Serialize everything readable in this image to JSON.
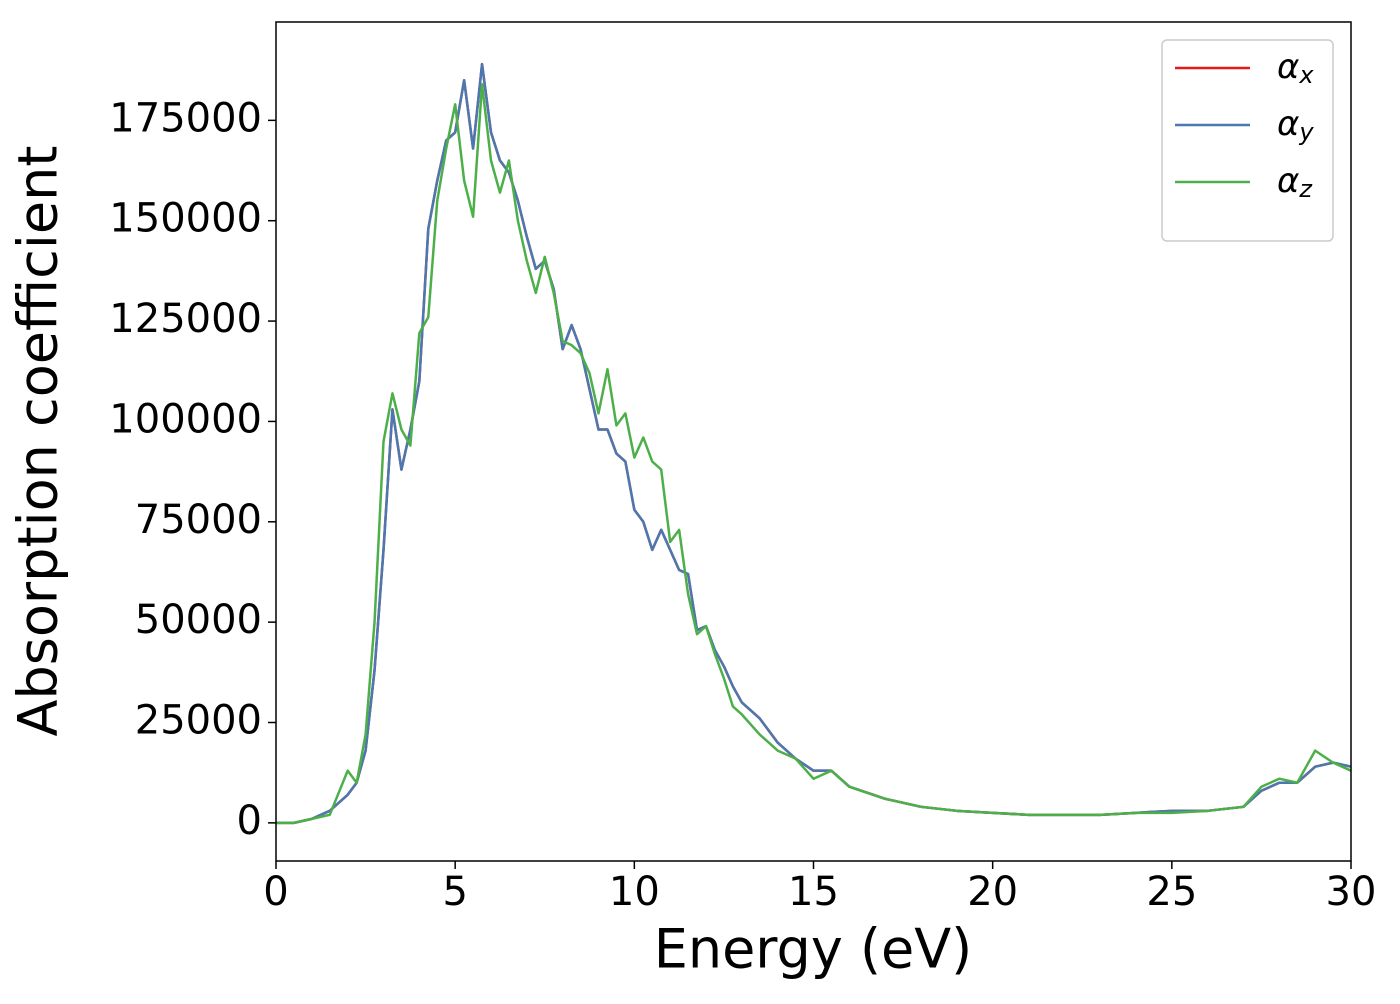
{
  "chart_data": {
    "type": "line",
    "x_label": "Energy (eV)",
    "y_label": "Absorption coefficient",
    "x": [
      0,
      0.5,
      1,
      1.5,
      2,
      2.25,
      2.5,
      2.75,
      3,
      3.25,
      3.5,
      3.75,
      4,
      4.25,
      4.5,
      4.75,
      5,
      5.25,
      5.5,
      5.75,
      6,
      6.25,
      6.5,
      6.75,
      7,
      7.25,
      7.5,
      7.75,
      8,
      8.25,
      8.5,
      8.75,
      9,
      9.25,
      9.5,
      9.75,
      10,
      10.25,
      10.5,
      10.75,
      11,
      11.25,
      11.5,
      11.75,
      12,
      12.25,
      12.5,
      12.75,
      13,
      13.5,
      14,
      14.5,
      15,
      15.5,
      16,
      17,
      18,
      19,
      20,
      21,
      22,
      23,
      24,
      25,
      26,
      27,
      27.5,
      28,
      28.5,
      29,
      29.5,
      30
    ],
    "series": [
      {
        "name": "αx",
        "color": "#e41a1c",
        "values": [
          0,
          0,
          1000,
          3000,
          7000,
          10000,
          18000,
          38000,
          68000,
          103000,
          88000,
          98000,
          110000,
          148000,
          160000,
          170000,
          172000,
          185000,
          168000,
          189000,
          172000,
          165000,
          162000,
          155000,
          146000,
          138000,
          140000,
          133000,
          118000,
          124000,
          118000,
          108000,
          98000,
          98000,
          92000,
          90000,
          78000,
          75000,
          68000,
          73000,
          68000,
          63000,
          62000,
          48000,
          49000,
          43000,
          39000,
          34000,
          30000,
          26000,
          20000,
          16000,
          13000,
          13000,
          9000,
          6000,
          4000,
          3000,
          2500,
          2000,
          2000,
          2000,
          2500,
          3000,
          3000,
          4000,
          8000,
          10000,
          10000,
          14000,
          15000,
          14000
        ]
      },
      {
        "name": "αy",
        "color": "#4a78b0",
        "values": [
          0,
          0,
          1000,
          3000,
          7000,
          10000,
          18000,
          38000,
          68000,
          103000,
          88000,
          98000,
          110000,
          148000,
          160000,
          170000,
          172000,
          185000,
          168000,
          189000,
          172000,
          165000,
          162000,
          155000,
          146000,
          138000,
          140000,
          133000,
          118000,
          124000,
          118000,
          108000,
          98000,
          98000,
          92000,
          90000,
          78000,
          75000,
          68000,
          73000,
          68000,
          63000,
          62000,
          48000,
          49000,
          43000,
          39000,
          34000,
          30000,
          26000,
          20000,
          16000,
          13000,
          13000,
          9000,
          6000,
          4000,
          3000,
          2500,
          2000,
          2000,
          2000,
          2500,
          3000,
          3000,
          4000,
          8000,
          10000,
          10000,
          14000,
          15000,
          14000
        ]
      },
      {
        "name": "αz",
        "color": "#4daf4a",
        "values": [
          0,
          0,
          1000,
          2000,
          13000,
          10000,
          22000,
          50000,
          95000,
          107000,
          98000,
          94000,
          122000,
          126000,
          155000,
          168000,
          179000,
          160000,
          151000,
          184000,
          165000,
          157000,
          165000,
          150000,
          140000,
          132000,
          141000,
          132000,
          120000,
          119000,
          117000,
          112000,
          102000,
          113000,
          99000,
          102000,
          91000,
          96000,
          90000,
          88000,
          70000,
          73000,
          57000,
          47000,
          49000,
          42000,
          36000,
          29000,
          27000,
          22000,
          18000,
          16000,
          11000,
          13000,
          9000,
          6000,
          4000,
          3000,
          2500,
          2000,
          2000,
          2000,
          2500,
          2500,
          3000,
          4000,
          9000,
          11000,
          10000,
          18000,
          15000,
          13000
        ]
      }
    ],
    "xlim": [
      0,
      30
    ],
    "xticks": [
      0,
      5,
      10,
      15,
      20,
      25,
      30
    ],
    "ylim": [
      -9500,
      199500
    ],
    "yticks": [
      0,
      25000,
      50000,
      75000,
      100000,
      125000,
      150000,
      175000
    ],
    "legend": "upper right",
    "grid": false
  }
}
